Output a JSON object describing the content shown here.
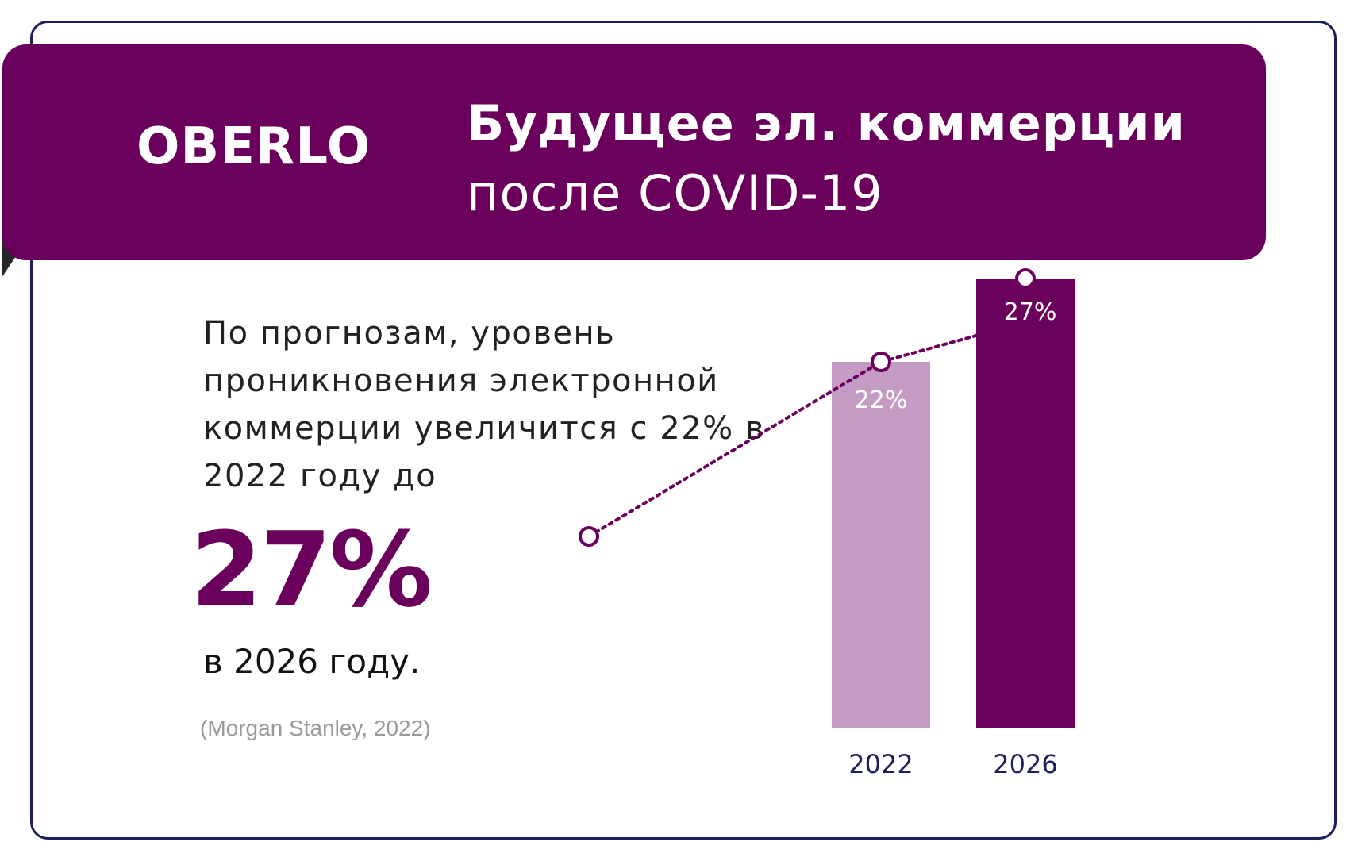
{
  "brand": {
    "logo_text": "OBERLO"
  },
  "header": {
    "title_line1": "Будущее эл. коммерции",
    "title_line2": "после COVID-19"
  },
  "body": {
    "description": "По прогнозам, уровень проникновения электронной коммерции увеличится с 22% в 2022 году до",
    "highlight_value": "27%",
    "highlight_year_text": "в 2026 году.",
    "source": "(Morgan Stanley, 2022)"
  },
  "colors": {
    "brand_purple": "#6b005c",
    "light_purple": "#c49bc2",
    "border_navy": "#1e1f5c"
  },
  "chart_data": {
    "type": "bar",
    "categories": [
      "2022",
      "2026"
    ],
    "values": [
      22,
      27
    ],
    "value_labels": [
      "22%",
      "27%"
    ],
    "bar_colors": [
      "#c49bc2",
      "#6b005c"
    ],
    "trend_line": "dotted line rising through the tops of both bars",
    "title": "",
    "xlabel": "",
    "ylabel": "",
    "grid": false
  }
}
